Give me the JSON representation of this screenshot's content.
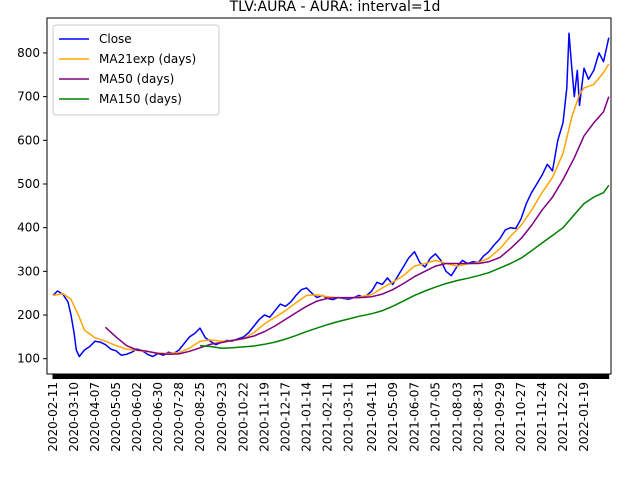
{
  "chart_data": {
    "type": "line",
    "title": "TLV:AURA - AURA: interval=1d",
    "xlabel": "",
    "ylabel": "",
    "grid": false,
    "legend_placement": "top-left",
    "x_range": [
      "2020-02-03",
      "2022-02-24"
    ],
    "ylim": [
      65,
      880
    ],
    "y_ticks": [
      100,
      200,
      300,
      400,
      500,
      600,
      700,
      800
    ],
    "x_ticks": [
      "2020-02-11",
      "2020-03-10",
      "2020-04-07",
      "2020-05-05",
      "2020-06-02",
      "2020-06-30",
      "2020-07-28",
      "2020-08-25",
      "2020-09-23",
      "2020-10-22",
      "2020-11-19",
      "2020-12-17",
      "2021-01-14",
      "2021-02-11",
      "2021-03-11",
      "2021-04-11",
      "2021-05-09",
      "2021-06-07",
      "2021-07-05",
      "2021-08-03",
      "2021-08-31",
      "2021-09-29",
      "2021-10-27",
      "2021-11-24",
      "2021-12-22",
      "2022-01-19"
    ],
    "series": [
      {
        "name": "Close",
        "color": "#0000ff",
        "points": [
          [
            "2020-02-11",
            245
          ],
          [
            "2020-02-17",
            255
          ],
          [
            "2020-02-24",
            248
          ],
          [
            "2020-03-02",
            230
          ],
          [
            "2020-03-06",
            200
          ],
          [
            "2020-03-10",
            160
          ],
          [
            "2020-03-13",
            120
          ],
          [
            "2020-03-17",
            105
          ],
          [
            "2020-03-24",
            120
          ],
          [
            "2020-03-31",
            128
          ],
          [
            "2020-04-07",
            140
          ],
          [
            "2020-04-14",
            138
          ],
          [
            "2020-04-21",
            132
          ],
          [
            "2020-04-28",
            122
          ],
          [
            "2020-05-05",
            118
          ],
          [
            "2020-05-12",
            108
          ],
          [
            "2020-05-19",
            110
          ],
          [
            "2020-05-26",
            115
          ],
          [
            "2020-06-02",
            122
          ],
          [
            "2020-06-09",
            118
          ],
          [
            "2020-06-16",
            110
          ],
          [
            "2020-06-23",
            105
          ],
          [
            "2020-06-30",
            112
          ],
          [
            "2020-07-07",
            108
          ],
          [
            "2020-07-14",
            115
          ],
          [
            "2020-07-21",
            112
          ],
          [
            "2020-07-28",
            120
          ],
          [
            "2020-08-04",
            135
          ],
          [
            "2020-08-11",
            150
          ],
          [
            "2020-08-18",
            158
          ],
          [
            "2020-08-25",
            170
          ],
          [
            "2020-09-01",
            148
          ],
          [
            "2020-09-08",
            140
          ],
          [
            "2020-09-15",
            132
          ],
          [
            "2020-09-23",
            138
          ],
          [
            "2020-09-30",
            142
          ],
          [
            "2020-10-07",
            140
          ],
          [
            "2020-10-14",
            145
          ],
          [
            "2020-10-22",
            150
          ],
          [
            "2020-10-29",
            160
          ],
          [
            "2020-11-05",
            175
          ],
          [
            "2020-11-12",
            190
          ],
          [
            "2020-11-19",
            200
          ],
          [
            "2020-11-26",
            195
          ],
          [
            "2020-12-03",
            210
          ],
          [
            "2020-12-10",
            225
          ],
          [
            "2020-12-17",
            220
          ],
          [
            "2020-12-24",
            230
          ],
          [
            "2020-12-31",
            245
          ],
          [
            "2021-01-07",
            258
          ],
          [
            "2021-01-14",
            262
          ],
          [
            "2021-01-21",
            250
          ],
          [
            "2021-01-28",
            240
          ],
          [
            "2021-02-04",
            245
          ],
          [
            "2021-02-11",
            238
          ],
          [
            "2021-02-18",
            235
          ],
          [
            "2021-02-25",
            240
          ],
          [
            "2021-03-04",
            238
          ],
          [
            "2021-03-11",
            236
          ],
          [
            "2021-03-18",
            240
          ],
          [
            "2021-03-25",
            245
          ],
          [
            "2021-04-01",
            240
          ],
          [
            "2021-04-11",
            255
          ],
          [
            "2021-04-18",
            275
          ],
          [
            "2021-04-25",
            270
          ],
          [
            "2021-05-02",
            285
          ],
          [
            "2021-05-09",
            270
          ],
          [
            "2021-05-16",
            290
          ],
          [
            "2021-05-23",
            310
          ],
          [
            "2021-05-30",
            330
          ],
          [
            "2021-06-07",
            345
          ],
          [
            "2021-06-14",
            320
          ],
          [
            "2021-06-21",
            310
          ],
          [
            "2021-06-28",
            330
          ],
          [
            "2021-07-05",
            340
          ],
          [
            "2021-07-12",
            325
          ],
          [
            "2021-07-19",
            300
          ],
          [
            "2021-07-26",
            290
          ],
          [
            "2021-08-03",
            312
          ],
          [
            "2021-08-10",
            325
          ],
          [
            "2021-08-17",
            318
          ],
          [
            "2021-08-24",
            322
          ],
          [
            "2021-08-31",
            320
          ],
          [
            "2021-09-07",
            335
          ],
          [
            "2021-09-14",
            345
          ],
          [
            "2021-09-21",
            360
          ],
          [
            "2021-09-29",
            375
          ],
          [
            "2021-10-06",
            395
          ],
          [
            "2021-10-13",
            400
          ],
          [
            "2021-10-20",
            398
          ],
          [
            "2021-10-27",
            420
          ],
          [
            "2021-11-03",
            455
          ],
          [
            "2021-11-10",
            480
          ],
          [
            "2021-11-17",
            500
          ],
          [
            "2021-11-24",
            520
          ],
          [
            "2021-12-01",
            545
          ],
          [
            "2021-12-08",
            530
          ],
          [
            "2021-12-15",
            600
          ],
          [
            "2021-12-22",
            640
          ],
          [
            "2021-12-27",
            720
          ],
          [
            "2021-12-30",
            845
          ],
          [
            "2022-01-03",
            760
          ],
          [
            "2022-01-06",
            700
          ],
          [
            "2022-01-10",
            760
          ],
          [
            "2022-01-13",
            680
          ],
          [
            "2022-01-19",
            765
          ],
          [
            "2022-01-25",
            740
          ],
          [
            "2022-02-01",
            760
          ],
          [
            "2022-02-08",
            800
          ],
          [
            "2022-02-14",
            780
          ],
          [
            "2022-02-21",
            835
          ]
        ]
      },
      {
        "name": "MA21exp (days)",
        "color": "#ffa500",
        "points": [
          [
            "2020-02-11",
            245
          ],
          [
            "2020-02-24",
            249
          ],
          [
            "2020-03-06",
            236
          ],
          [
            "2020-03-17",
            195
          ],
          [
            "2020-03-24",
            165
          ],
          [
            "2020-04-07",
            148
          ],
          [
            "2020-04-21",
            140
          ],
          [
            "2020-05-05",
            130
          ],
          [
            "2020-05-19",
            122
          ],
          [
            "2020-06-02",
            119
          ],
          [
            "2020-06-16",
            116
          ],
          [
            "2020-06-30",
            113
          ],
          [
            "2020-07-14",
            112
          ],
          [
            "2020-07-28",
            114
          ],
          [
            "2020-08-11",
            124
          ],
          [
            "2020-08-25",
            140
          ],
          [
            "2020-09-08",
            143
          ],
          [
            "2020-09-23",
            140
          ],
          [
            "2020-10-07",
            141
          ],
          [
            "2020-10-22",
            146
          ],
          [
            "2020-11-05",
            160
          ],
          [
            "2020-11-19",
            180
          ],
          [
            "2020-12-03",
            195
          ],
          [
            "2020-12-17",
            210
          ],
          [
            "2020-12-31",
            228
          ],
          [
            "2021-01-14",
            245
          ],
          [
            "2021-01-28",
            246
          ],
          [
            "2021-02-11",
            242
          ],
          [
            "2021-02-25",
            240
          ],
          [
            "2021-03-11",
            239
          ],
          [
            "2021-03-25",
            241
          ],
          [
            "2021-04-11",
            247
          ],
          [
            "2021-04-25",
            262
          ],
          [
            "2021-05-09",
            275
          ],
          [
            "2021-05-23",
            290
          ],
          [
            "2021-06-07",
            312
          ],
          [
            "2021-06-21",
            318
          ],
          [
            "2021-07-05",
            325
          ],
          [
            "2021-07-19",
            318
          ],
          [
            "2021-08-03",
            312
          ],
          [
            "2021-08-17",
            317
          ],
          [
            "2021-08-31",
            320
          ],
          [
            "2021-09-14",
            330
          ],
          [
            "2021-09-29",
            352
          ],
          [
            "2021-10-13",
            380
          ],
          [
            "2021-10-27",
            405
          ],
          [
            "2021-11-10",
            440
          ],
          [
            "2021-11-24",
            480
          ],
          [
            "2021-12-08",
            515
          ],
          [
            "2021-12-22",
            570
          ],
          [
            "2022-01-03",
            655
          ],
          [
            "2022-01-13",
            705
          ],
          [
            "2022-01-19",
            720
          ],
          [
            "2022-02-01",
            728
          ],
          [
            "2022-02-14",
            755
          ],
          [
            "2022-02-21",
            775
          ]
        ]
      },
      {
        "name": "MA50 (days)",
        "color": "#800080",
        "points": [
          [
            "2020-04-21",
            172
          ],
          [
            "2020-05-05",
            150
          ],
          [
            "2020-05-19",
            130
          ],
          [
            "2020-06-02",
            120
          ],
          [
            "2020-06-16",
            117
          ],
          [
            "2020-06-30",
            112
          ],
          [
            "2020-07-14",
            110
          ],
          [
            "2020-07-28",
            111
          ],
          [
            "2020-08-11",
            117
          ],
          [
            "2020-08-25",
            125
          ],
          [
            "2020-09-08",
            133
          ],
          [
            "2020-09-23",
            137
          ],
          [
            "2020-10-07",
            142
          ],
          [
            "2020-10-22",
            146
          ],
          [
            "2020-11-05",
            152
          ],
          [
            "2020-11-19",
            162
          ],
          [
            "2020-12-03",
            175
          ],
          [
            "2020-12-17",
            190
          ],
          [
            "2020-12-31",
            205
          ],
          [
            "2021-01-14",
            220
          ],
          [
            "2021-01-28",
            232
          ],
          [
            "2021-02-11",
            238
          ],
          [
            "2021-02-25",
            240
          ],
          [
            "2021-03-11",
            240
          ],
          [
            "2021-03-25",
            240
          ],
          [
            "2021-04-11",
            242
          ],
          [
            "2021-04-25",
            248
          ],
          [
            "2021-05-09",
            258
          ],
          [
            "2021-05-23",
            272
          ],
          [
            "2021-06-07",
            288
          ],
          [
            "2021-06-21",
            300
          ],
          [
            "2021-07-05",
            312
          ],
          [
            "2021-07-19",
            318
          ],
          [
            "2021-08-03",
            318
          ],
          [
            "2021-08-17",
            318
          ],
          [
            "2021-08-31",
            318
          ],
          [
            "2021-09-14",
            322
          ],
          [
            "2021-09-29",
            332
          ],
          [
            "2021-10-13",
            352
          ],
          [
            "2021-10-27",
            375
          ],
          [
            "2021-11-10",
            405
          ],
          [
            "2021-11-24",
            440
          ],
          [
            "2021-12-08",
            470
          ],
          [
            "2021-12-22",
            510
          ],
          [
            "2022-01-06",
            560
          ],
          [
            "2022-01-19",
            610
          ],
          [
            "2022-02-01",
            640
          ],
          [
            "2022-02-14",
            665
          ],
          [
            "2022-02-21",
            700
          ]
        ]
      },
      {
        "name": "MA150 (days)",
        "color": "#008000",
        "points": [
          [
            "2020-08-25",
            130
          ],
          [
            "2020-09-08",
            128
          ],
          [
            "2020-09-23",
            124
          ],
          [
            "2020-10-07",
            125
          ],
          [
            "2020-10-22",
            127
          ],
          [
            "2020-11-05",
            129
          ],
          [
            "2020-11-19",
            133
          ],
          [
            "2020-12-03",
            138
          ],
          [
            "2020-12-17",
            145
          ],
          [
            "2020-12-31",
            153
          ],
          [
            "2021-01-14",
            162
          ],
          [
            "2021-01-28",
            170
          ],
          [
            "2021-02-11",
            178
          ],
          [
            "2021-02-25",
            185
          ],
          [
            "2021-03-11",
            191
          ],
          [
            "2021-03-25",
            197
          ],
          [
            "2021-04-11",
            203
          ],
          [
            "2021-04-25",
            210
          ],
          [
            "2021-05-09",
            220
          ],
          [
            "2021-05-23",
            232
          ],
          [
            "2021-06-07",
            245
          ],
          [
            "2021-06-21",
            255
          ],
          [
            "2021-07-05",
            264
          ],
          [
            "2021-07-19",
            272
          ],
          [
            "2021-08-03",
            279
          ],
          [
            "2021-08-17",
            284
          ],
          [
            "2021-08-31",
            290
          ],
          [
            "2021-09-14",
            297
          ],
          [
            "2021-09-29",
            308
          ],
          [
            "2021-10-13",
            318
          ],
          [
            "2021-10-27",
            330
          ],
          [
            "2021-11-10",
            347
          ],
          [
            "2021-11-24",
            365
          ],
          [
            "2021-12-08",
            382
          ],
          [
            "2021-12-22",
            400
          ],
          [
            "2022-01-06",
            430
          ],
          [
            "2022-01-19",
            455
          ],
          [
            "2022-02-01",
            470
          ],
          [
            "2022-02-14",
            480
          ],
          [
            "2022-02-21",
            497
          ]
        ]
      }
    ]
  }
}
